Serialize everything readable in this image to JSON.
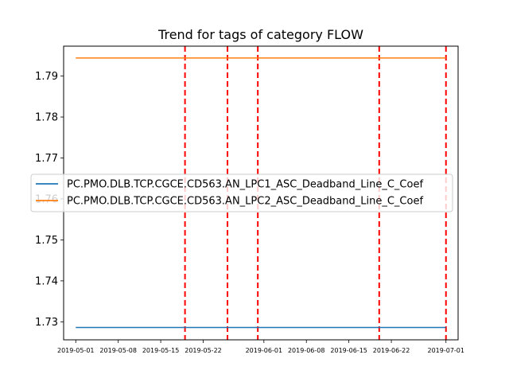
{
  "chart_data": {
    "type": "line",
    "title": "Trend for tags of category FLOW",
    "xlabel": "",
    "ylabel": "",
    "x_ticks": [
      "2019-05-01",
      "2019-05-08",
      "2019-05-15",
      "2019-05-22",
      "2019-06-01",
      "2019-06-08",
      "2019-06-15",
      "2019-06-22",
      "2019-07-01"
    ],
    "y_ticks": [
      "1.73",
      "1.74",
      "1.75",
      "1.76",
      "1.77",
      "1.78",
      "1.79"
    ],
    "xlim": [
      "2019-04-29",
      "2019-07-03"
    ],
    "ylim": [
      1.7256,
      1.7973
    ],
    "grid": false,
    "legend_position": "center-left",
    "series": [
      {
        "name": "PC.PMO.DLB.TCP.CGCE.CD563.AN_LPC1_ASC_Deadband_Line_C_Coef",
        "color": "#1f77b4",
        "x": [
          "2019-05-01",
          "2019-07-01"
        ],
        "y": [
          1.7286,
          1.7286
        ]
      },
      {
        "name": "PC.PMO.DLB.TCP.CGCE.CD563.AN_LPC2_ASC_Deadband_Line_C_Coef",
        "color": "#ff7f0e",
        "x": [
          "2019-05-01",
          "2019-07-01"
        ],
        "y": [
          1.7944,
          1.7944
        ]
      }
    ],
    "vertical_markers": {
      "color": "#ff0000",
      "style": "dashed",
      "dates": [
        "2019-05-19",
        "2019-05-26",
        "2019-05-31",
        "2019-06-20",
        "2019-07-01"
      ]
    }
  }
}
